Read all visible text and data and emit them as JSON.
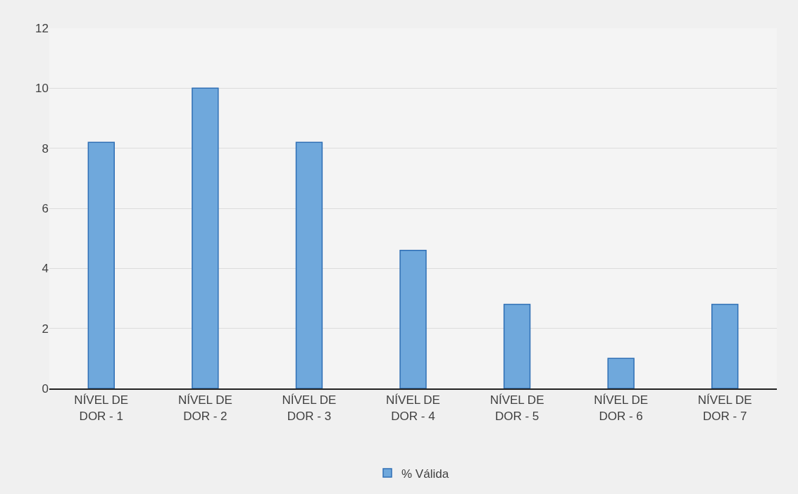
{
  "chart_data": {
    "type": "bar",
    "categories": [
      "NÍVEL DE DOR - 1",
      "NÍVEL DE DOR - 2",
      "NÍVEL DE DOR - 3",
      "NÍVEL DE DOR - 4",
      "NÍVEL DE DOR - 5",
      "NÍVEL DE DOR - 6",
      "NÍVEL DE DOR - 7"
    ],
    "series": [
      {
        "name": "% Válida",
        "color": "#6fa8dc",
        "values": [
          8.2,
          10,
          8.2,
          4.6,
          2.8,
          1.0,
          2.8
        ]
      }
    ],
    "ylim": [
      0,
      12
    ],
    "yticks": [
      0,
      2,
      4,
      6,
      8,
      10,
      12
    ],
    "grid": "y",
    "legend": "bottom"
  }
}
